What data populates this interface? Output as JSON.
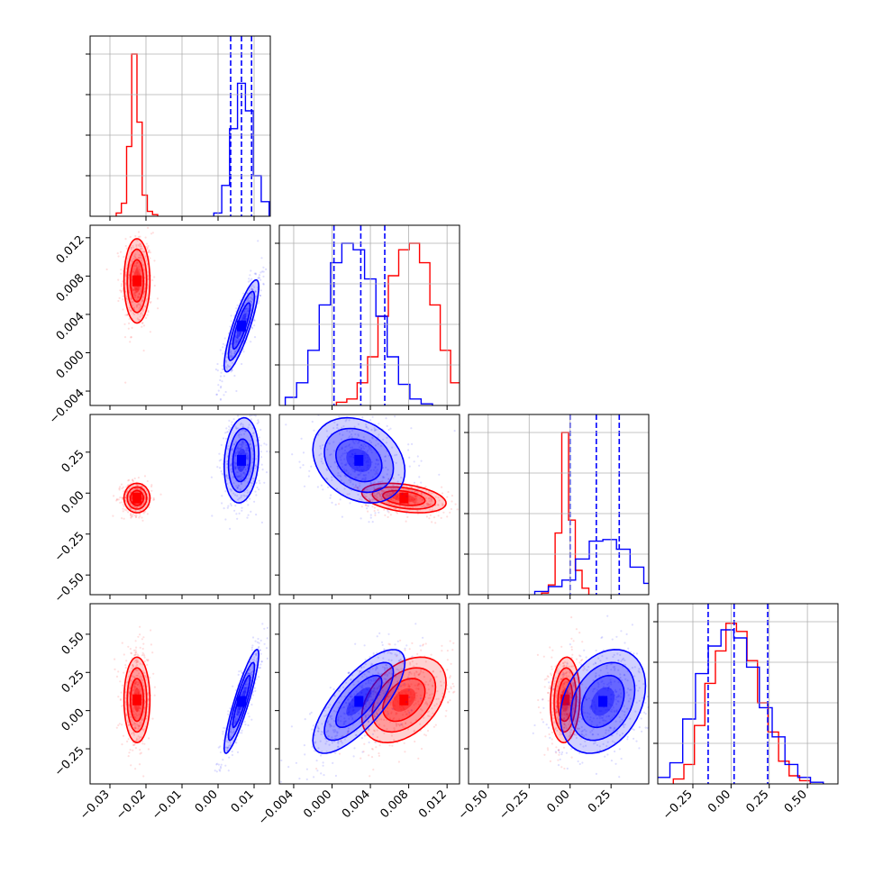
{
  "figure": {
    "type": "corner-plot",
    "colors": {
      "red_series": "#ff0000",
      "blue_series": "#0000ff",
      "grid": "#b0b0b0",
      "axes": "#000000"
    }
  },
  "chart_data": {
    "type": "corner",
    "grid": true,
    "series": [
      {
        "color": "#ff0000",
        "means": [
          -0.0225,
          0.0075,
          -0.03,
          0.07
        ],
        "sds": [
          0.0018,
          0.0022,
          0.045,
          0.14
        ],
        "corr": {
          "1-0": 0.0,
          "2-0": 0.0,
          "2-1": -0.35,
          "3-0": 0.0,
          "3-1": 0.4,
          "3-2": 0.1
        }
      },
      {
        "color": "#0000ff",
        "means": [
          0.0065,
          0.0028,
          0.2,
          0.06
        ],
        "sds": [
          0.0024,
          0.0024,
          0.13,
          0.17
        ],
        "corr": {
          "1-0": 0.85,
          "2-0": 0.15,
          "2-1": -0.25,
          "3-0": 0.9,
          "3-1": 0.75,
          "3-2": 0.3
        }
      }
    ],
    "quantile_lines": {
      "color": "#0000ff",
      "values": [
        [
          0.0035,
          0.0065,
          0.0093
        ],
        [
          0.0002,
          0.003,
          0.0055
        ],
        [
          0.0,
          0.16,
          0.3
        ],
        [
          -0.15,
          0.02,
          0.24
        ]
      ]
    },
    "parameters": [
      {
        "range": [
          -0.0355,
          0.0145
        ],
        "ticks": [
          -0.03,
          -0.02,
          -0.01,
          0.0,
          0.01
        ],
        "tick_labels": [
          "−0.03",
          "−0.02",
          "−0.01",
          "0.00",
          "0.01"
        ]
      },
      {
        "range": [
          -0.0055,
          0.0133
        ],
        "ticks": [
          -0.004,
          0.0,
          0.004,
          0.008,
          0.012
        ],
        "tick_labels": [
          "−0.004",
          "0.000",
          "0.004",
          "0.008",
          "0.012"
        ]
      },
      {
        "range": [
          -0.62,
          0.48
        ],
        "ticks": [
          -0.5,
          -0.25,
          0.0,
          0.25
        ],
        "tick_labels": [
          "−0.50",
          "−0.25",
          "0.00",
          "0.25"
        ]
      },
      {
        "range": [
          -0.48,
          0.7
        ],
        "ticks": [
          -0.25,
          0.0,
          0.25,
          0.5
        ],
        "tick_labels": [
          "−0.25",
          "0.00",
          "0.25",
          "0.50"
        ]
      }
    ],
    "histograms": [
      {
        "red_bins": [
          0.02,
          0.08,
          0.43,
          1.0,
          0.58,
          0.13,
          0.03,
          0.01
        ],
        "blue_bins": [
          0.02,
          0.19,
          0.54,
          0.82,
          0.65,
          0.25,
          0.09
        ]
      },
      {
        "red_bins": [
          0.02,
          0.04,
          0.14,
          0.3,
          0.55,
          0.8,
          0.96,
          1.0,
          0.88,
          0.62,
          0.34,
          0.14,
          0.04
        ],
        "blue_bins": [
          0.05,
          0.14,
          0.34,
          0.62,
          0.88,
          1.0,
          0.96,
          0.78,
          0.55,
          0.3,
          0.13,
          0.04,
          0.01
        ]
      },
      {
        "red_bins": [
          0.01,
          0.06,
          0.38,
          1.0,
          0.46,
          0.15,
          0.04
        ],
        "blue_bins": [
          0.02,
          0.05,
          0.09,
          0.22,
          0.33,
          0.34,
          0.28,
          0.17,
          0.07,
          0.02
        ]
      },
      {
        "red_bins": [
          0.03,
          0.12,
          0.36,
          0.62,
          0.82,
          0.99,
          0.94,
          0.76,
          0.5,
          0.32,
          0.14,
          0.05,
          0.02
        ],
        "blue_bins": [
          0.04,
          0.13,
          0.4,
          0.68,
          0.85,
          0.95,
          0.9,
          0.72,
          0.47,
          0.29,
          0.12,
          0.04,
          0.01
        ]
      }
    ]
  }
}
